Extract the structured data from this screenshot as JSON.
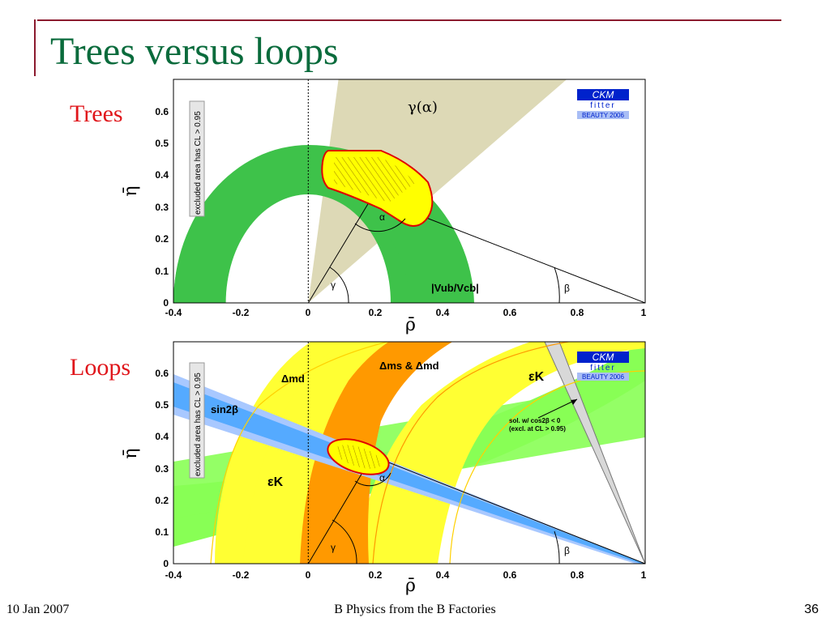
{
  "slide": {
    "title": "Trees versus loops",
    "footer_left": "10 Jan 2007",
    "footer_center": "B Physics from the B Factories",
    "page_number": "36"
  },
  "panels": [
    {
      "id": "trees",
      "side_label": "Trees",
      "excluded_note": "excluded area has CL > 0.95",
      "logo": {
        "line1": "CKM",
        "line2": "fitter",
        "line3": "BEAUTY 2006"
      },
      "labels": {
        "gamma_alpha": "γ(α)",
        "alpha": "α",
        "beta": "β",
        "gamma": "γ",
        "vub_vcb": "|Vub/Vcb|"
      }
    },
    {
      "id": "loops",
      "side_label": "Loops",
      "excluded_note": "excluded area has CL > 0.95",
      "logo": {
        "line1": "CKM",
        "line2": "fitter",
        "line3": "BEAUTY 2006"
      },
      "labels": {
        "dm_d": "Δmd",
        "dm_s_dm_d": "Δms & Δmd",
        "sin2beta": "sin2β",
        "eps_k_right": "εK",
        "eps_k_left": "εK",
        "sol_line1": "sol. w/ cos2β < 0",
        "sol_line2": "(excl. at CL > 0.95)",
        "alpha": "α",
        "beta": "β",
        "gamma": "γ"
      }
    }
  ],
  "chart_data": [
    {
      "type": "area",
      "title": "",
      "xlabel": "ρ̄",
      "ylabel": "η̄",
      "xlim": [
        -0.4,
        1.0
      ],
      "ylim": [
        0,
        0.7
      ],
      "xticks": [
        "-0.4",
        "-0.2",
        "0",
        "0.2",
        "0.4",
        "0.6",
        "0.8",
        "1"
      ],
      "yticks": [
        "0",
        "0.1",
        "0.2",
        "0.3",
        "0.4",
        "0.5",
        "0.6"
      ],
      "apex": [
        0.19,
        0.34
      ],
      "grid": false,
      "colors": {
        "vub": "#3ec24a",
        "gamma": "#ddd9b6",
        "fit": "#ffff00",
        "fit_edge": "#e00000"
      }
    },
    {
      "type": "area",
      "title": "",
      "xlabel": "ρ̄",
      "ylabel": "η̄",
      "xlim": [
        -0.4,
        1.0
      ],
      "ylim": [
        0,
        0.7
      ],
      "xticks": [
        "-0.4",
        "-0.2",
        "0",
        "0.2",
        "0.4",
        "0.6",
        "0.8",
        "1"
      ],
      "yticks": [
        "0",
        "0.1",
        "0.2",
        "0.3",
        "0.4",
        "0.5",
        "0.6"
      ],
      "apex": [
        0.19,
        0.34
      ],
      "grid": false,
      "colors": {
        "dmd": "#ffff33",
        "dms": "#ff9900",
        "epsk": "#88ff55",
        "sin2b_outer": "#a8c8ff",
        "sin2b_inner": "#55aaff",
        "fit": "#ffff00",
        "fit_edge": "#e00000"
      }
    }
  ]
}
